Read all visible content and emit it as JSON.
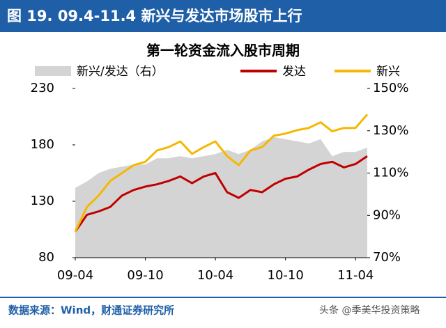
{
  "header": {
    "title": "图 19. 09.4-11.4 新兴与发达市场股市上行"
  },
  "chart_data": {
    "type": "line",
    "title": "第一轮资金流入股市周期",
    "x": [
      "09-04",
      "09-05",
      "09-06",
      "09-07",
      "09-08",
      "09-09",
      "09-10",
      "09-11",
      "09-12",
      "10-01",
      "10-02",
      "10-03",
      "10-04",
      "10-05",
      "10-06",
      "10-07",
      "10-08",
      "10-09",
      "10-10",
      "10-11",
      "10-12",
      "11-01",
      "11-02",
      "11-03",
      "11-04",
      "11-05"
    ],
    "xticks": [
      "09-04",
      "09-10",
      "10-04",
      "10-10",
      "11-04"
    ],
    "ylim": [
      80,
      230
    ],
    "yticks": [
      80,
      130,
      180,
      230
    ],
    "y2lim": [
      70,
      150
    ],
    "y2ticks": [
      {
        "value": 70,
        "label": "70%"
      },
      {
        "value": 90,
        "label": "90%"
      },
      {
        "value": 110,
        "label": "110%"
      },
      {
        "value": 130,
        "label": "130%"
      },
      {
        "value": 150,
        "label": "150%"
      }
    ],
    "series": [
      {
        "name": "新兴/发达（右）",
        "color": "#d4d4d4",
        "axis": "y2",
        "style": "area",
        "values": [
          103,
          106,
          110,
          112,
          113,
          114,
          114,
          117,
          117,
          118,
          117,
          118,
          119,
          121,
          119,
          121,
          125,
          127,
          126,
          125,
          124,
          126,
          118,
          120,
          120,
          122
        ]
      },
      {
        "name": "发达",
        "color": "#c00000",
        "style": "line",
        "values": [
          103,
          118,
          121,
          125,
          135,
          140,
          143,
          145,
          148,
          152,
          146,
          152,
          155,
          138,
          133,
          140,
          138,
          145,
          150,
          152,
          158,
          163,
          165,
          160,
          163,
          170
        ]
      },
      {
        "name": "新兴",
        "color": "#f5b800",
        "style": "line",
        "values": [
          103,
          125,
          135,
          148,
          155,
          162,
          165,
          175,
          178,
          183,
          172,
          178,
          183,
          170,
          162,
          175,
          178,
          188,
          190,
          193,
          195,
          200,
          192,
          195,
          195,
          207
        ]
      }
    ]
  },
  "footer": {
    "source": "数据来源：Wind，财通证券研究所",
    "watermark": "头条 @季美华投资策略"
  }
}
